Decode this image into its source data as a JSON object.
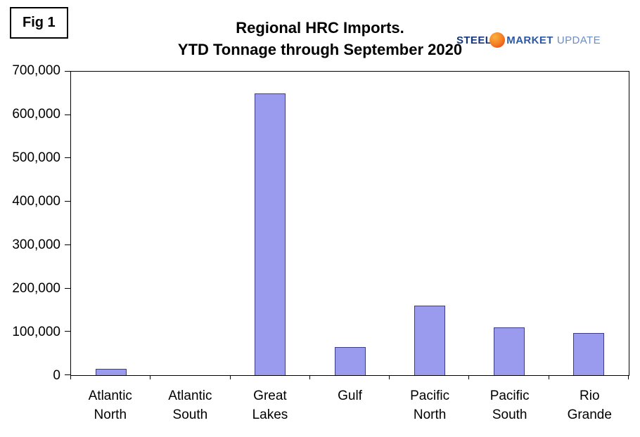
{
  "fig_label": "Fig 1",
  "title_line1": "Regional HRC Imports.",
  "title_line2": "YTD Tonnage through September 2020",
  "logo": {
    "steel": "STEEL",
    "market": "MARKET",
    "update": "UPDATE"
  },
  "chart_data": {
    "type": "bar",
    "title": "Regional HRC Imports. YTD Tonnage through September 2020",
    "categories": [
      "Atlantic North",
      "Atlantic South",
      "Great Lakes",
      "Gulf",
      "Pacific North",
      "Pacific South",
      "Rio Grande"
    ],
    "values": [
      14000,
      0,
      650000,
      65000,
      160000,
      110000,
      97000
    ],
    "xlabel": "",
    "ylabel": "",
    "ylim": [
      0,
      700000
    ],
    "ytick_step": 100000,
    "ytick_labels": [
      "0",
      "100,000",
      "200,000",
      "300,000",
      "400,000",
      "500,000",
      "600,000",
      "700,000"
    ],
    "grid": false,
    "legend": false,
    "bar_color": "#9a9aee",
    "bar_border": "#3c3c8c"
  }
}
